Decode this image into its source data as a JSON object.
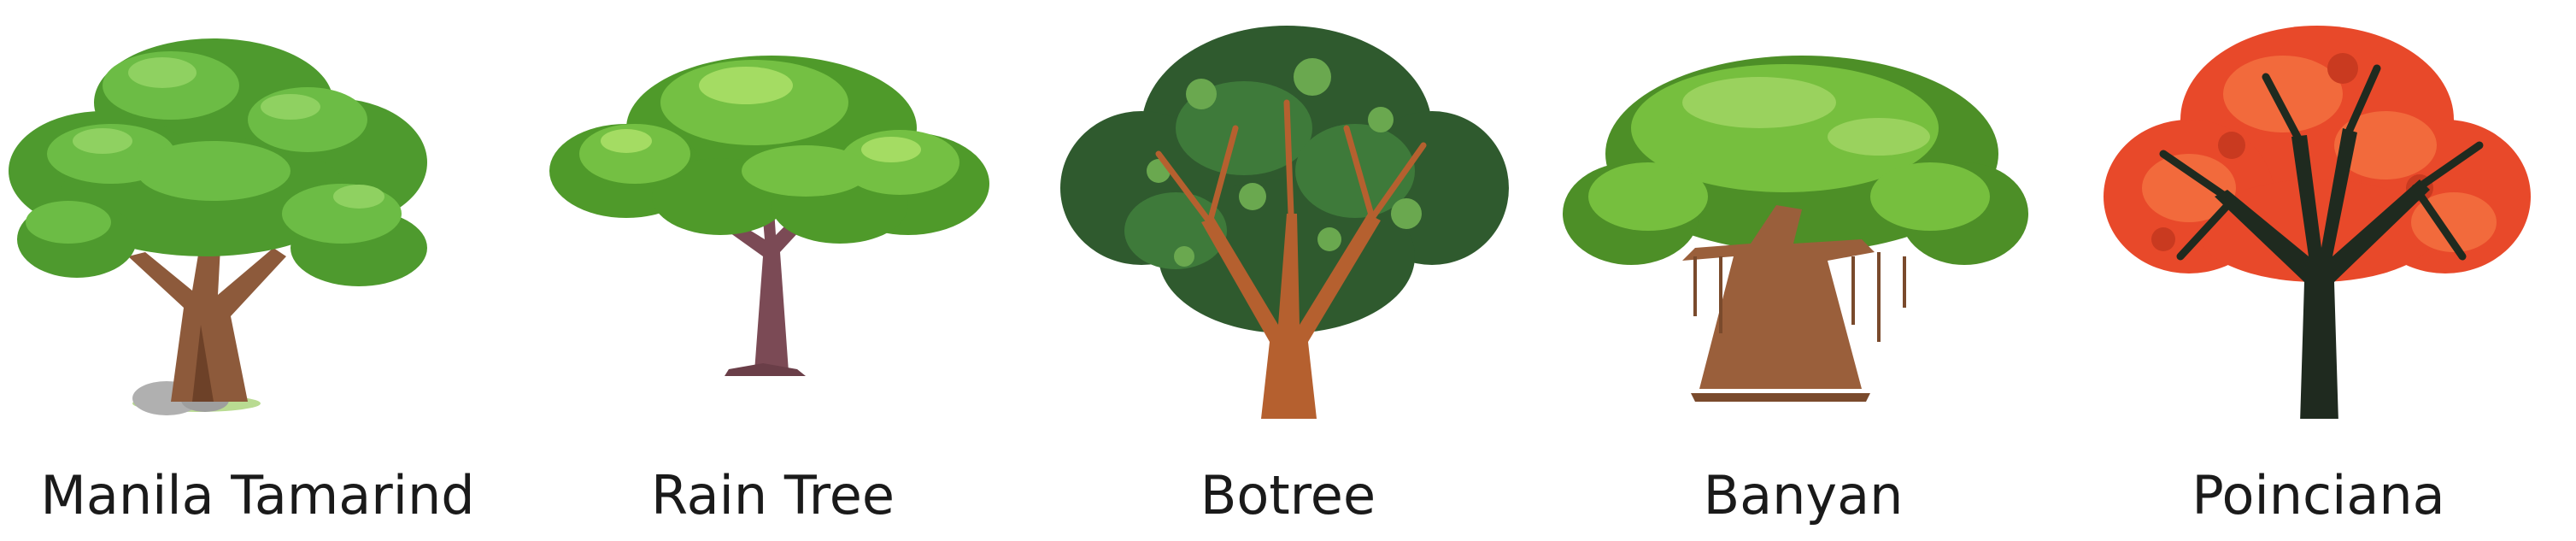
{
  "trees": [
    {
      "name": "Manila Tamarind",
      "icon": "manila-tamarind-tree-illustration"
    },
    {
      "name": "Rain Tree",
      "icon": "rain-tree-illustration"
    },
    {
      "name": "Botree",
      "icon": "botree-illustration"
    },
    {
      "name": "Banyan",
      "icon": "banyan-tree-illustration"
    },
    {
      "name": "Poinciana",
      "icon": "poinciana-tree-illustration"
    }
  ]
}
